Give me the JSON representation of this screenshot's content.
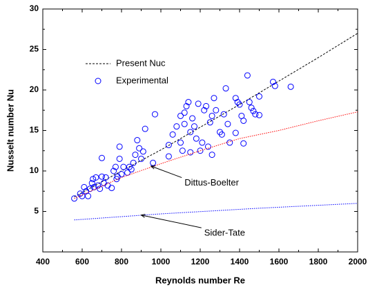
{
  "chart_data": {
    "type": "scatter",
    "xlabel": "Reynolds number Re",
    "ylabel": "Nusselt number Nu",
    "xlim": [
      400,
      2000
    ],
    "ylim": [
      0,
      30
    ],
    "xticks": [
      400,
      600,
      800,
      1000,
      1200,
      1400,
      1600,
      1800,
      2000
    ],
    "yticks": [
      5,
      10,
      15,
      20,
      25,
      30
    ],
    "series": [
      {
        "name": "Present Nuc",
        "kind": "line",
        "dash": "dashed",
        "color": "#000000",
        "in_legend": true,
        "x": [
          560,
          800,
          1000,
          1200,
          1400,
          1600,
          1800,
          2000
        ],
        "values": [
          6.8,
          10.0,
          12.6,
          15.4,
          18.2,
          21.1,
          24.0,
          27.0
        ]
      },
      {
        "name": "Experimental",
        "kind": "scatter",
        "color": "#0000ff",
        "in_legend": true,
        "x": [
          560,
          590,
          600,
          610,
          620,
          630,
          640,
          650,
          655,
          660,
          670,
          680,
          690,
          700,
          700,
          710,
          720,
          730,
          750,
          760,
          770,
          775,
          780,
          790,
          790,
          800,
          810,
          830,
          840,
          850,
          860,
          870,
          880,
          890,
          900,
          910,
          920,
          970,
          960,
          1040,
          1040,
          1060,
          1080,
          1100,
          1100,
          1110,
          1120,
          1120,
          1130,
          1140,
          1150,
          1150,
          1160,
          1170,
          1180,
          1190,
          1200,
          1210,
          1220,
          1230,
          1240,
          1250,
          1260,
          1260,
          1270,
          1280,
          1300,
          1310,
          1320,
          1330,
          1340,
          1350,
          1380,
          1380,
          1390,
          1400,
          1410,
          1420,
          1420,
          1440,
          1450,
          1460,
          1470,
          1480,
          1500,
          1500,
          1570,
          1580,
          1660
        ],
        "values": [
          6.6,
          7.2,
          6.9,
          8.0,
          7.5,
          6.9,
          7.8,
          8.5,
          9.0,
          8.0,
          9.2,
          8.2,
          7.8,
          9.3,
          11.6,
          8.5,
          9.2,
          8.2,
          7.9,
          10.0,
          10.5,
          9.0,
          9.3,
          13.0,
          11.5,
          9.6,
          10.5,
          9.8,
          10.5,
          10.2,
          11.0,
          12.0,
          13.8,
          12.8,
          11.5,
          12.4,
          15.2,
          17.0,
          11.0,
          13.2,
          11.8,
          14.5,
          15.5,
          16.8,
          13.5,
          12.5,
          15.8,
          17.2,
          18.0,
          18.5,
          12.3,
          14.8,
          16.5,
          15.5,
          14.0,
          18.3,
          12.5,
          13.5,
          17.5,
          18.0,
          13.0,
          16.0,
          16.8,
          12.0,
          19.0,
          17.5,
          14.8,
          14.5,
          17.0,
          20.2,
          15.8,
          13.5,
          14.7,
          19.0,
          18.5,
          18.2,
          16.8,
          16.2,
          13.4,
          21.8,
          18.5,
          17.8,
          17.4,
          17.0,
          19.2,
          16.9,
          21.0,
          20.5,
          20.4
        ]
      },
      {
        "name": "Dittus-Boelter",
        "kind": "line",
        "dash": "dotted",
        "color": "#ff0000",
        "in_legend": false,
        "x": [
          560,
          800,
          1000,
          1200,
          1400,
          1600,
          1800,
          2000
        ],
        "values": [
          6.6,
          9.2,
          10.9,
          12.5,
          14.0,
          15.0,
          16.2,
          17.3
        ]
      },
      {
        "name": "Sider-Tate",
        "kind": "line",
        "dash": "dotted",
        "color": "#0000ff",
        "in_legend": false,
        "x": [
          560,
          1000,
          1500,
          2000
        ],
        "values": [
          3.95,
          4.7,
          5.4,
          6.0
        ]
      }
    ]
  }
}
